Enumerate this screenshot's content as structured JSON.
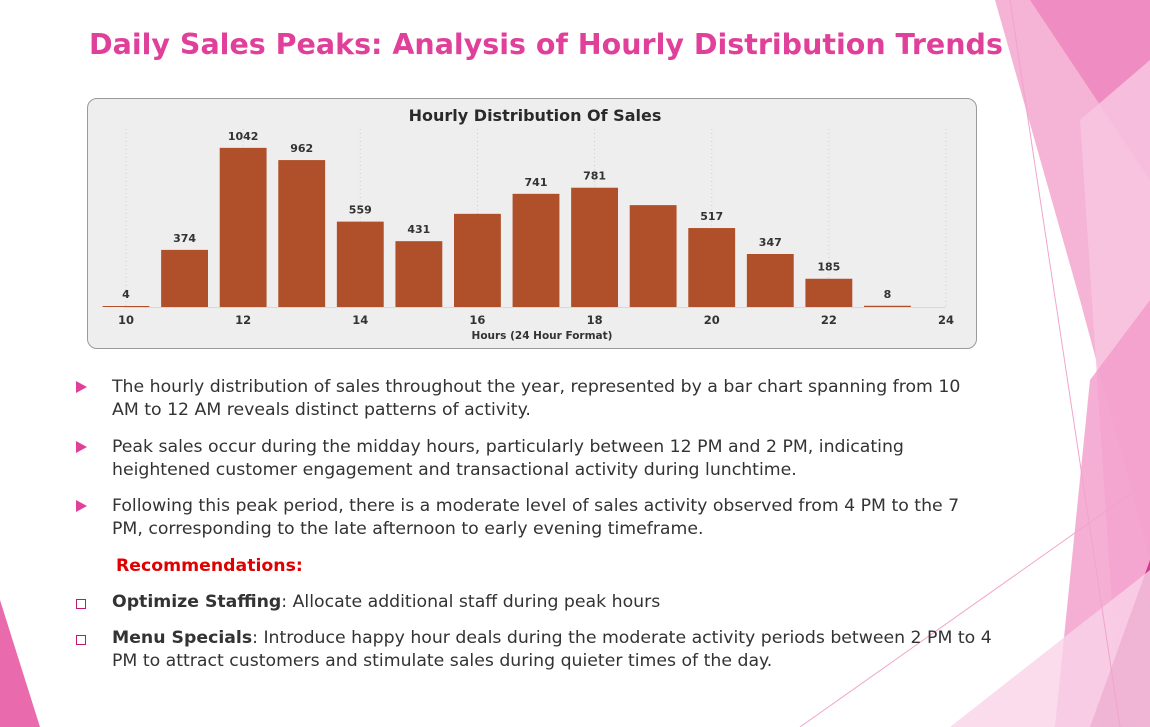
{
  "title": "Daily Sales Peaks: Analysis of Hourly Distribution Trends",
  "colors": {
    "title": "#e0409a",
    "bar": "#b0502a",
    "accent_pink": "#e0409a",
    "recommendation": "#e00000"
  },
  "bullets": [
    "The hourly distribution of sales throughout the year, represented by a bar chart spanning from 10 AM to 12 AM reveals distinct patterns of activity.",
    "Peak sales occur during the midday hours, particularly between 12 PM and 2 PM, indicating heightened customer engagement and transactional activity during lunchtime.",
    "Following this peak period, there is a moderate level of sales activity observed from 4 PM to the 7 PM, corresponding to the late afternoon to early evening timeframe."
  ],
  "recommendations_heading": "Recommendations:",
  "recommendations": [
    {
      "label": "Optimize Staffing",
      "text": ": Allocate additional staff during peak hours"
    },
    {
      "label": "Menu Specials",
      "text": ": Introduce happy hour deals during the moderate activity periods between 2 PM to 4 PM to attract customers and stimulate sales during quieter times of the day."
    }
  ],
  "chart_data": {
    "type": "bar",
    "title": "Hourly Distribution Of Sales",
    "xlabel": "Hours (24 Hour Format)",
    "ylabel": "",
    "x": [
      10,
      11,
      12,
      13,
      14,
      15,
      16,
      17,
      18,
      19,
      20,
      21,
      22,
      23
    ],
    "values": [
      4,
      374,
      1042,
      962,
      559,
      431,
      610,
      741,
      781,
      667,
      517,
      347,
      185,
      8
    ],
    "data_labels": [
      "4",
      "374",
      "1042",
      "962",
      "559",
      "431",
      "",
      "741",
      "781",
      "",
      "517",
      "347",
      "185",
      "8"
    ],
    "x_ticks": [
      "10",
      "12",
      "14",
      "16",
      "18",
      "20",
      "22",
      "24"
    ],
    "xlim": [
      10,
      24
    ],
    "ylim": [
      0,
      1100
    ],
    "grid": "vertical dotted",
    "legend": "none"
  }
}
